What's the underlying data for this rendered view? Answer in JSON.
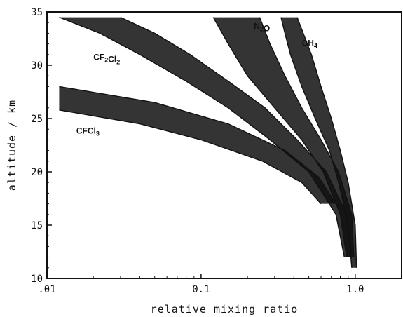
{
  "chart_data": {
    "type": "area",
    "title": "",
    "xlabel": "relative mixing ratio",
    "ylabel": "altitude / km",
    "xscale": "log",
    "xlim": [
      0.01,
      2.0
    ],
    "ylim": [
      10,
      35
    ],
    "x_ticks": [
      {
        "value": 0.01,
        "label": ".01"
      },
      {
        "value": 0.1,
        "label": "0.1"
      },
      {
        "value": 1.0,
        "label": "1.0"
      }
    ],
    "y_ticks": [
      {
        "value": 10,
        "label": "10"
      },
      {
        "value": 15,
        "label": "15"
      },
      {
        "value": 20,
        "label": "20"
      },
      {
        "value": 25,
        "label": "25"
      },
      {
        "value": 30,
        "label": "30"
      },
      {
        "value": 35,
        "label": "35"
      }
    ],
    "grid": false,
    "series": [
      {
        "name": "CH4",
        "color": "#111111",
        "lines": [
          {
            "x": [
              0.95,
              0.9,
              0.78,
              0.68,
              0.55,
              0.45,
              0.38,
              0.35,
              0.33
            ],
            "y": [
              11,
              15,
              19,
              22,
              25,
              28,
              31,
              33,
              34.5
            ]
          },
          {
            "x": [
              1.02,
              1.0,
              0.9,
              0.8,
              0.7,
              0.6,
              0.52,
              0.46,
              0.42
            ],
            "y": [
              11,
              15,
              19,
              22,
              25,
              28,
              31,
              33,
              34.5
            ]
          }
        ]
      },
      {
        "name": "N2O",
        "color": "#111111",
        "lines": [
          {
            "x": [
              0.88,
              0.8,
              0.62,
              0.45,
              0.3,
              0.2,
              0.15,
              0.12
            ],
            "y": [
              12,
              16,
              20,
              23,
              26,
              29,
              32,
              34.5
            ]
          },
          {
            "x": [
              0.98,
              0.95,
              0.78,
              0.6,
              0.45,
              0.35,
              0.28,
              0.24
            ],
            "y": [
              12,
              16,
              20,
              23,
              26,
              29,
              32,
              34.5
            ]
          }
        ]
      },
      {
        "name": "CF2Cl2",
        "color": "#111111",
        "lines": [
          {
            "x": [
              0.85,
              0.75,
              0.5,
              0.28,
              0.15,
              0.08,
              0.04,
              0.022,
              0.012
            ],
            "y": [
              12,
              16,
              20,
              23,
              26,
              28.5,
              31,
              33,
              34.5
            ]
          },
          {
            "x": [
              0.95,
              0.88,
              0.65,
              0.42,
              0.26,
              0.15,
              0.085,
              0.05,
              0.03
            ],
            "y": [
              12,
              16,
              20,
              23,
              26,
              28.5,
              31,
              33,
              34.5
            ]
          }
        ]
      },
      {
        "name": "CFCl3",
        "color": "#111111",
        "lines": [
          {
            "x": [
              0.6,
              0.45,
              0.25,
              0.1,
              0.04,
              0.012
            ],
            "y": [
              17,
              19,
              21,
              23,
              24.5,
              25.8
            ]
          },
          {
            "x": [
              0.75,
              0.58,
              0.35,
              0.15,
              0.05,
              0.012
            ],
            "y": [
              17,
              19.5,
              22,
              24.5,
              26.5,
              28
            ]
          }
        ]
      }
    ],
    "annotations": [
      {
        "text": "N2O",
        "x": 0.22,
        "y": 33.4
      },
      {
        "text": "CH4",
        "x": 0.45,
        "y": 31.8
      },
      {
        "text": "CF2Cl2",
        "x": 0.02,
        "y": 30.5
      },
      {
        "text": "CFCl3",
        "x": 0.0155,
        "y": 23.6
      }
    ]
  }
}
